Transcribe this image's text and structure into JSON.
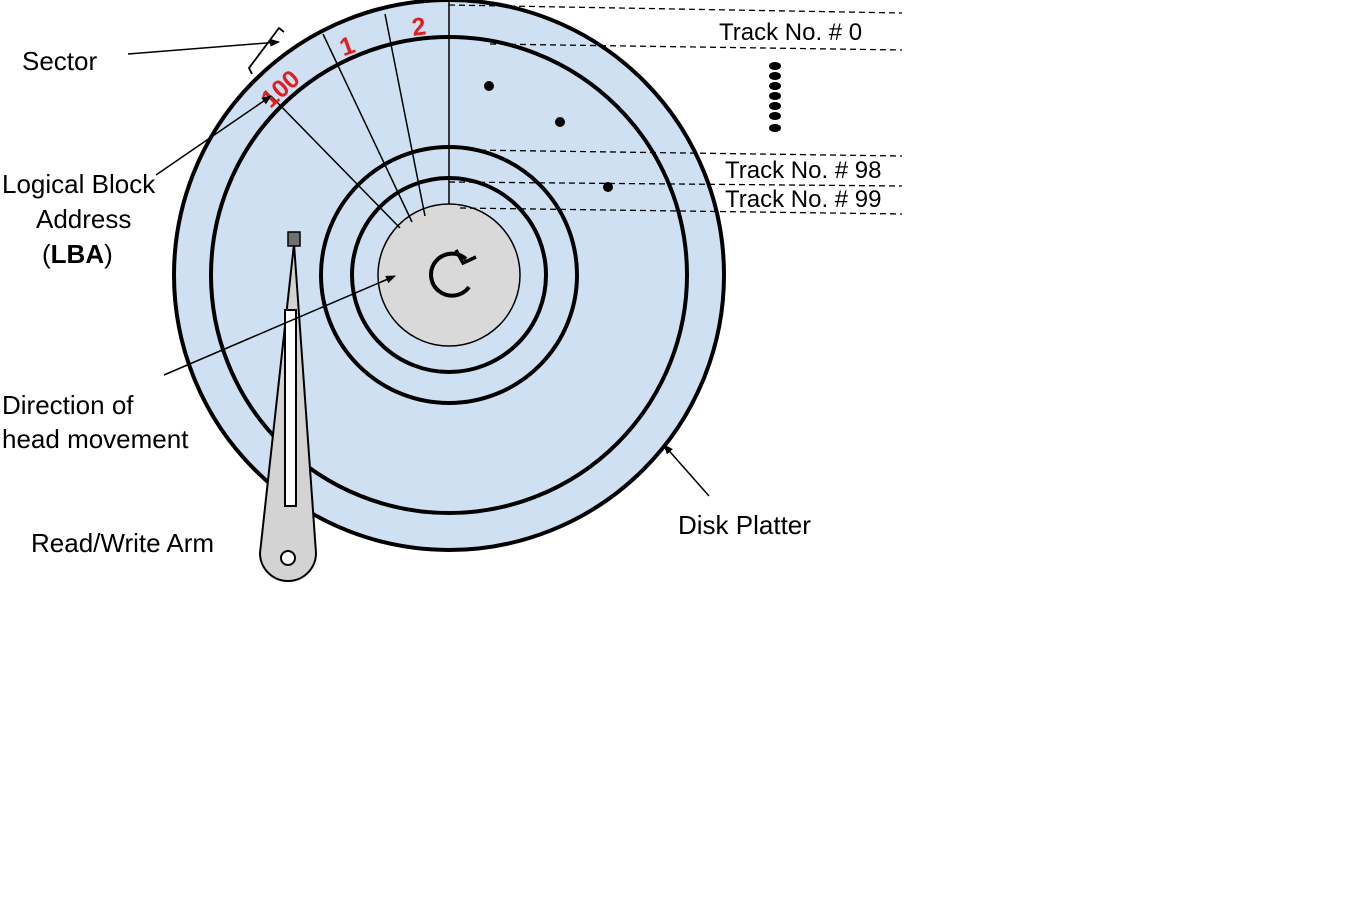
{
  "labels": {
    "sector": "Sector",
    "lba_line1": "Logical Block",
    "lba_line2": "Address",
    "lba_open": "(",
    "lba_bold": "LBA",
    "lba_close": ")",
    "direction_line1": "Direction of",
    "direction_line2": "head movement",
    "read_write_arm": "Read/Write Arm",
    "disk_platter": "Disk Platter"
  },
  "tracks": {
    "track0": "Track No. # 0",
    "track98": "Track No. # 98",
    "track99": "Track No. # 99"
  },
  "sectors": {
    "s100": "100",
    "s1": "1",
    "s2": "2"
  },
  "colors": {
    "platter_fill": "#cfe0f2",
    "hub_fill": "#d9d9d9",
    "arm_fill": "#d3d3d3",
    "sector_number": "#e02020",
    "outline": "#000000"
  }
}
